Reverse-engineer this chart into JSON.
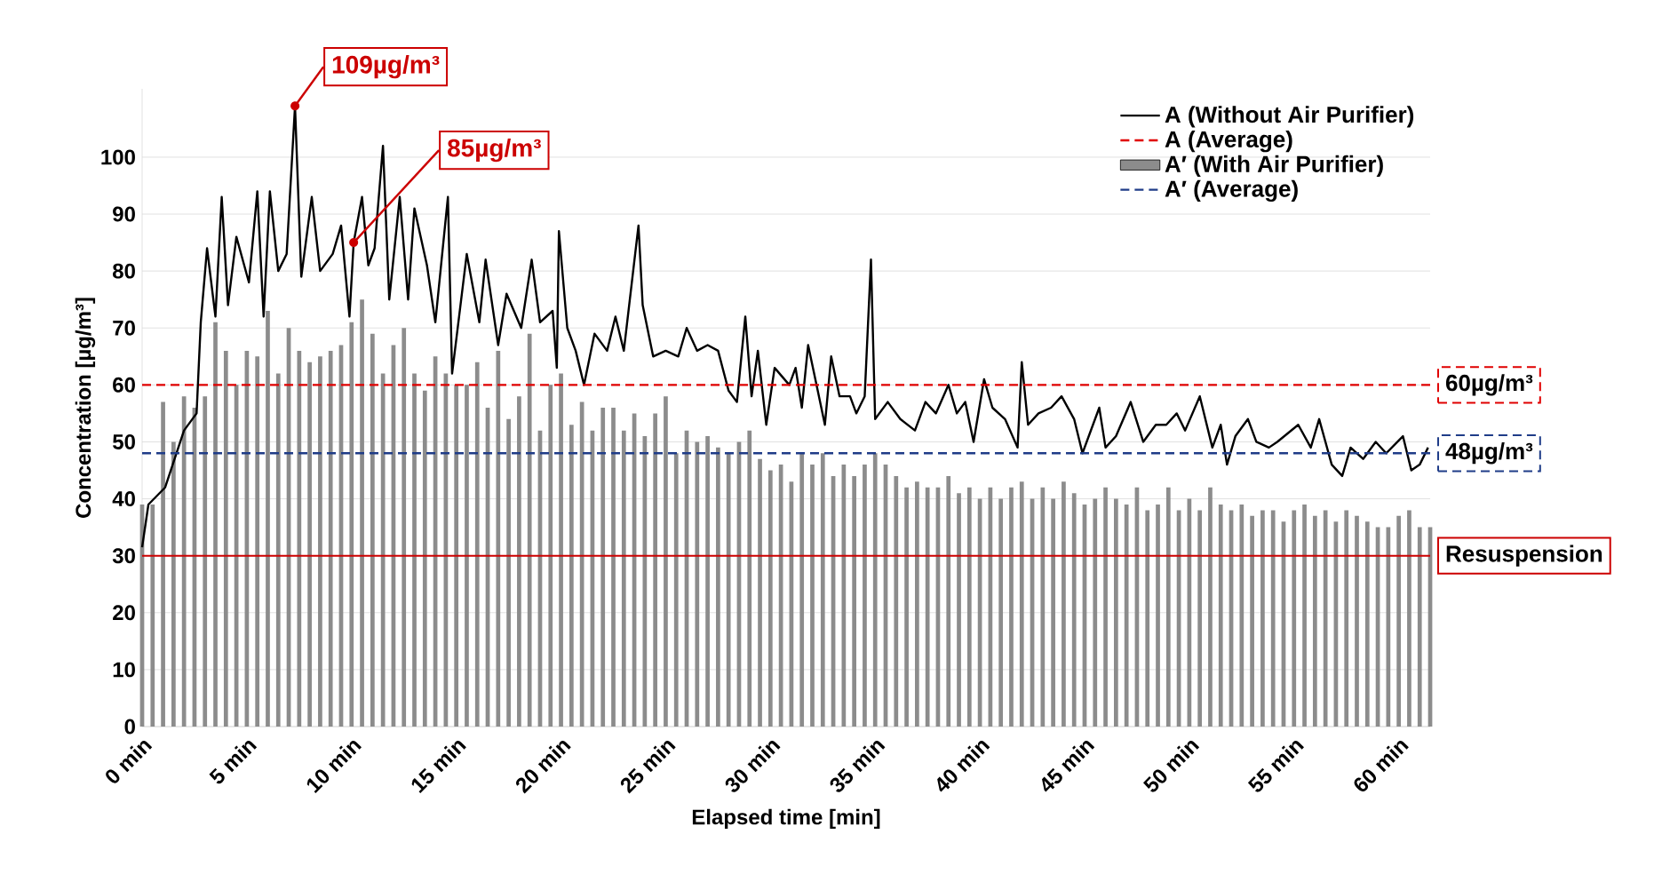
{
  "chart_data": {
    "type": "line",
    "xlabel": "Elapsed time [min]",
    "ylabel": "Concentration [µg/m³]",
    "xlim": [
      0,
      61.5
    ],
    "ylim": [
      0,
      112
    ],
    "xticks": [
      {
        "value": 0,
        "label": "0 min"
      },
      {
        "value": 5,
        "label": "5 min"
      },
      {
        "value": 10,
        "label": "10 min"
      },
      {
        "value": 15,
        "label": "15 min"
      },
      {
        "value": 20,
        "label": "20 min"
      },
      {
        "value": 25,
        "label": "25 min"
      },
      {
        "value": 30,
        "label": "30 min"
      },
      {
        "value": 35,
        "label": "35 min"
      },
      {
        "value": 40,
        "label": "40 min"
      },
      {
        "value": 45,
        "label": "45 min"
      },
      {
        "value": 50,
        "label": "50 min"
      },
      {
        "value": 55,
        "label": "55 min"
      },
      {
        "value": 60,
        "label": "60 min"
      }
    ],
    "yticks": [
      0,
      10,
      20,
      30,
      40,
      50,
      60,
      70,
      80,
      90,
      100
    ],
    "grid": "y",
    "legend": "top right",
    "series": [
      {
        "name": "A  (Without Air Purifier)",
        "color": "#000000",
        "x": [
          0,
          0.3,
          1.1,
          2,
          2.6,
          2.8,
          3.1,
          3.5,
          3.8,
          4.1,
          4.5,
          5.1,
          5.5,
          5.8,
          6.1,
          6.5,
          6.9,
          7.3,
          7.6,
          8.1,
          8.5,
          9.1,
          9.5,
          9.9,
          10.1,
          10.5,
          10.8,
          11.1,
          11.5,
          11.8,
          12.3,
          12.7,
          13.0,
          13.6,
          14.0,
          14.6,
          14.8,
          15.5,
          16.1,
          16.4,
          17.0,
          17.4,
          18.1,
          18.6,
          19.0,
          19.6,
          19.8,
          19.9,
          20.3,
          20.7,
          21.1,
          21.6,
          22.2,
          22.6,
          23.0,
          23.7,
          23.9,
          24.4,
          25.0,
          25.6,
          26.0,
          26.5,
          27.0,
          27.5,
          28.0,
          28.4,
          28.8,
          29.1,
          29.4,
          29.8,
          30.2,
          30.9,
          31.2,
          31.5,
          31.8,
          32.2,
          32.6,
          32.9,
          33.3,
          33.8,
          34.1,
          34.5,
          34.8,
          35.0,
          35.6,
          36.2,
          36.9,
          37.4,
          37.9,
          38.5,
          38.9,
          39.3,
          39.7,
          40.2,
          40.6,
          41.2,
          41.8,
          42.0,
          42.3,
          42.8,
          43.4,
          43.9,
          44.5,
          44.9,
          45.7,
          46.0,
          46.5,
          47.2,
          47.8,
          48.4,
          48.9,
          49.4,
          49.8,
          50.5,
          51.1,
          51.5,
          51.8,
          52.2,
          52.8,
          53.2,
          53.8,
          54.2,
          55.2,
          55.8,
          56.2,
          56.8,
          57.3,
          57.7,
          58.3,
          58.9,
          59.4,
          60.2,
          60.6,
          61.0,
          61.4
        ],
        "values": [
          31.5,
          39,
          42,
          52,
          55,
          71,
          84,
          72,
          93,
          74,
          86,
          78,
          94,
          72,
          94,
          80,
          83,
          109,
          79,
          93,
          80,
          83,
          88,
          72,
          85,
          93,
          81,
          84,
          102,
          75,
          93,
          75,
          91,
          81,
          71,
          93,
          62,
          83,
          71,
          82,
          67,
          76,
          70,
          82,
          71,
          73,
          63,
          87,
          70,
          66,
          60,
          69,
          66,
          72,
          66,
          88,
          74,
          65,
          66,
          65,
          70,
          66,
          67,
          66,
          59,
          57,
          72,
          58,
          66,
          53,
          63,
          60,
          63,
          56,
          67,
          60,
          53,
          65,
          58,
          58,
          55,
          58,
          82,
          54,
          57,
          54,
          52,
          57,
          55,
          60,
          55,
          57,
          50,
          61,
          56,
          54,
          49,
          64,
          53,
          55,
          56,
          58,
          54,
          48,
          56,
          49,
          51,
          57,
          50,
          53,
          53,
          55,
          52,
          58,
          49,
          53,
          46,
          51,
          54,
          50,
          49,
          50,
          53,
          49,
          54,
          46,
          44,
          49,
          47,
          50,
          48,
          51,
          45,
          46,
          49
        ]
      },
      {
        "name": "A  (Average)",
        "color": "#e00000",
        "line_style": "dashed",
        "x": [
          0,
          61.5
        ],
        "values": [
          60,
          60
        ]
      },
      {
        "name": "A′ (With Air Purifier)",
        "type": "bar",
        "color": "#8c8c8c",
        "x": [
          0,
          0.5,
          1,
          1.5,
          2,
          2.5,
          3,
          3.5,
          4,
          4.5,
          5,
          5.5,
          6,
          6.5,
          7,
          7.5,
          8,
          8.5,
          9,
          9.5,
          10,
          10.5,
          11,
          11.5,
          12,
          12.5,
          13,
          13.5,
          14,
          14.5,
          15,
          15.5,
          16,
          16.5,
          17,
          17.5,
          18,
          18.5,
          19,
          19.5,
          20,
          20.5,
          21,
          21.5,
          22,
          22.5,
          23,
          23.5,
          24,
          24.5,
          25,
          25.5,
          26,
          26.5,
          27,
          27.5,
          28,
          28.5,
          29,
          29.5,
          30,
          30.5,
          31,
          31.5,
          32,
          32.5,
          33,
          33.5,
          34,
          34.5,
          35,
          35.5,
          36,
          36.5,
          37,
          37.5,
          38,
          38.5,
          39,
          39.5,
          40,
          40.5,
          41,
          41.5,
          42,
          42.5,
          43,
          43.5,
          44,
          44.5,
          45,
          45.5,
          46,
          46.5,
          47,
          47.5,
          48,
          48.5,
          49,
          49.5,
          50,
          50.5,
          51,
          51.5,
          52,
          52.5,
          53,
          53.5,
          54,
          54.5,
          55,
          55.5,
          56,
          56.5,
          57,
          57.5,
          58,
          58.5,
          59,
          59.5,
          60,
          60.5,
          61,
          61.5
        ],
        "values": [
          39,
          39,
          57,
          50,
          58,
          56,
          58,
          71,
          66,
          60,
          66,
          65,
          73,
          62,
          70,
          66,
          64,
          65,
          66,
          67,
          71,
          75,
          69,
          62,
          67,
          70,
          62,
          59,
          65,
          62,
          60,
          60,
          64,
          56,
          66,
          54,
          58,
          69,
          52,
          60,
          62,
          53,
          57,
          52,
          56,
          56,
          52,
          55,
          51,
          55,
          58,
          48,
          52,
          50,
          51,
          49,
          48,
          50,
          52,
          47,
          45,
          46,
          43,
          48,
          46,
          48,
          44,
          46,
          44,
          46,
          48,
          46,
          44,
          42,
          43,
          42,
          42,
          44,
          41,
          42,
          40,
          42,
          40,
          42,
          43,
          40,
          42,
          40,
          43,
          41,
          39,
          40,
          42,
          40,
          39,
          42,
          38,
          39,
          42,
          38,
          40,
          38,
          42,
          39,
          38,
          39,
          37,
          38,
          38,
          36,
          38,
          39,
          37,
          38,
          36,
          38,
          37,
          36,
          35,
          35,
          37,
          38,
          35,
          35
        ]
      },
      {
        "name": "A′ (Average)",
        "color": "#1f3c88",
        "line_style": "dashed",
        "x": [
          0,
          61.5
        ],
        "values": [
          48,
          48
        ]
      }
    ],
    "ref_lines": [
      {
        "axis": "y",
        "value": 30,
        "label": "Resuspension",
        "color": "#cc0000"
      }
    ],
    "annotations": [
      {
        "text": "109µg/m³",
        "x": 7.3,
        "y": 109
      },
      {
        "text": "85µg/m³",
        "x": 10.1,
        "y": 85
      },
      "60µg/m³",
      "48µg/m³"
    ]
  }
}
